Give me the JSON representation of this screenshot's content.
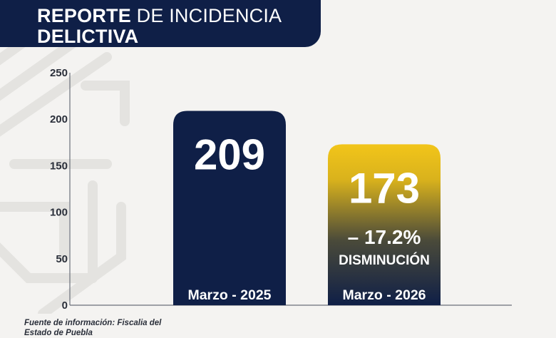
{
  "header": {
    "title_bold": "REPORTE",
    "title_regular": "DE INCIDENCIA",
    "title_line2": "DELICTIVA"
  },
  "colors": {
    "navy": "#0f1f47",
    "gold": "#f0c419",
    "axis": "#6a6f7a"
  },
  "chart_data": {
    "type": "bar",
    "categories": [
      "Marzo - 2025",
      "Marzo - 2026"
    ],
    "values": [
      209,
      173
    ],
    "ylim": [
      0,
      250
    ],
    "yticks": [
      0,
      50,
      100,
      150,
      200,
      250
    ],
    "data_labels": [
      "209",
      "173"
    ],
    "annotations": [
      {
        "category": "Marzo - 2026",
        "lines": [
          "– 17.2%",
          "DISMINUCIÓN"
        ]
      }
    ],
    "grid": false
  },
  "source": {
    "line1": "Fuente de información: Fiscalia del",
    "line2": "Estado de Puebla"
  }
}
